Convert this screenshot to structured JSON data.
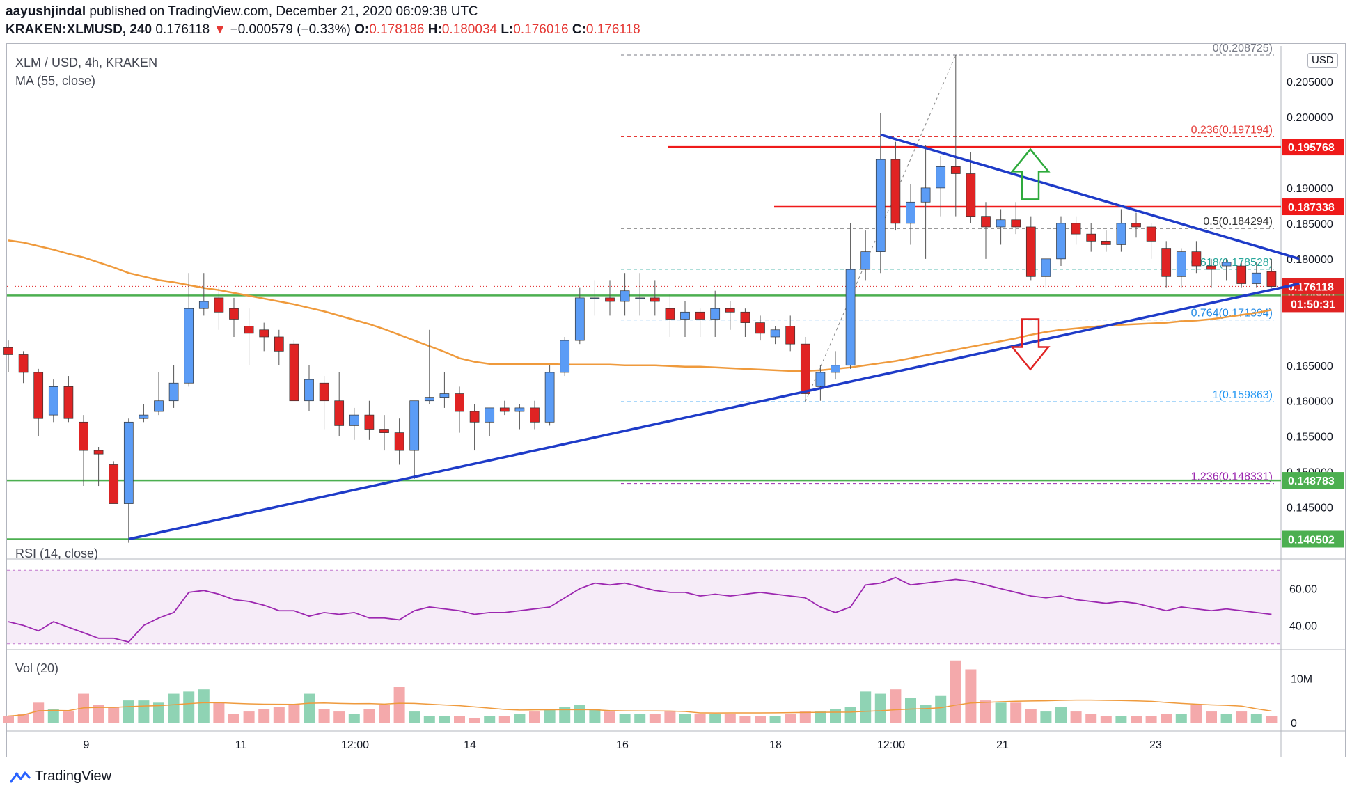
{
  "header": {
    "author": "aayushjindal",
    "published_text": "published on TradingView.com, December 21, 2020 06:09:38 UTC",
    "symbol": "KRAKEN:XLMUSD, 240",
    "last": "0.176118",
    "arrow": "▼",
    "change": "−0.000579 (−0.33%)",
    "o_label": "O:",
    "o": "0.178186",
    "h_label": "H:",
    "h": "0.180034",
    "l_label": "L:",
    "l": "0.176016",
    "c_label": "C:",
    "c": "0.176118"
  },
  "legend": {
    "main_title": "XLM / USD, 4h, KRAKEN",
    "ma_label": "MA (55, close)",
    "rsi_label": "RSI (14, close)",
    "vol_label": "Vol (20)"
  },
  "currency_button": "USD",
  "footer": {
    "brand": "TradingView"
  },
  "colors": {
    "bull": "#5b9cf6",
    "bear": "#e02323",
    "ma": "#ef9a3c",
    "trend": "#1e3bc8",
    "support": "#4caf50",
    "resistance": "#ef1a1a",
    "rsi": "#9c27b0"
  },
  "chart_data": {
    "type": "candlestick",
    "title": "XLM / USD, 4h, KRAKEN",
    "x_tick_labels": [
      "9",
      "11",
      "12:00",
      "14",
      "16",
      "18",
      "12:00",
      "21",
      "23"
    ],
    "y_tick_labels": [
      "0.205000",
      "0.200000",
      "0.190000",
      "0.185000",
      "0.180000",
      "0.165000",
      "0.160000",
      "0.155000",
      "0.150000",
      "0.145000"
    ],
    "ylim": [
      0.138,
      0.21
    ],
    "candles": [
      [
        0.1675,
        0.1685,
        0.164,
        0.1665
      ],
      [
        0.1665,
        0.167,
        0.1625,
        0.164
      ],
      [
        0.164,
        0.1645,
        0.155,
        0.1575
      ],
      [
        0.158,
        0.163,
        0.157,
        0.162
      ],
      [
        0.162,
        0.1635,
        0.157,
        0.1575
      ],
      [
        0.157,
        0.158,
        0.148,
        0.153
      ],
      [
        0.153,
        0.1535,
        0.148,
        0.1525
      ],
      [
        0.151,
        0.1515,
        0.146,
        0.1455
      ],
      [
        0.1455,
        0.1575,
        0.14,
        0.157
      ],
      [
        0.1575,
        0.1595,
        0.157,
        0.158
      ],
      [
        0.1585,
        0.164,
        0.158,
        0.16
      ],
      [
        0.16,
        0.165,
        0.159,
        0.1625
      ],
      [
        0.1625,
        0.178,
        0.162,
        0.173
      ],
      [
        0.173,
        0.178,
        0.172,
        0.174
      ],
      [
        0.1745,
        0.176,
        0.17,
        0.1725
      ],
      [
        0.173,
        0.1745,
        0.169,
        0.1715
      ],
      [
        0.1705,
        0.173,
        0.165,
        0.1695
      ],
      [
        0.17,
        0.171,
        0.167,
        0.169
      ],
      [
        0.169,
        0.17,
        0.165,
        0.167
      ],
      [
        0.168,
        0.1685,
        0.16,
        0.16
      ],
      [
        0.16,
        0.165,
        0.1585,
        0.163
      ],
      [
        0.1625,
        0.1635,
        0.156,
        0.16
      ],
      [
        0.16,
        0.164,
        0.155,
        0.1565
      ],
      [
        0.1565,
        0.159,
        0.1545,
        0.158
      ],
      [
        0.158,
        0.16,
        0.1545,
        0.156
      ],
      [
        0.156,
        0.158,
        0.153,
        0.1555
      ],
      [
        0.1555,
        0.1575,
        0.151,
        0.153
      ],
      [
        0.153,
        0.1595,
        0.149,
        0.16
      ],
      [
        0.16,
        0.17,
        0.1595,
        0.1605
      ],
      [
        0.1605,
        0.164,
        0.159,
        0.161
      ],
      [
        0.161,
        0.162,
        0.1555,
        0.1585
      ],
      [
        0.1585,
        0.1595,
        0.153,
        0.157
      ],
      [
        0.157,
        0.159,
        0.155,
        0.159
      ],
      [
        0.159,
        0.16,
        0.158,
        0.1585
      ],
      [
        0.1585,
        0.1595,
        0.156,
        0.159
      ],
      [
        0.159,
        0.16,
        0.156,
        0.157
      ],
      [
        0.157,
        0.165,
        0.1565,
        0.164
      ],
      [
        0.164,
        0.169,
        0.1635,
        0.1685
      ],
      [
        0.1685,
        0.176,
        0.168,
        0.1745
      ],
      [
        0.1745,
        0.177,
        0.172,
        0.1745
      ],
      [
        0.1745,
        0.177,
        0.172,
        0.174
      ],
      [
        0.174,
        0.178,
        0.172,
        0.1755
      ],
      [
        0.1745,
        0.178,
        0.172,
        0.1745
      ],
      [
        0.1745,
        0.177,
        0.172,
        0.174
      ],
      [
        0.173,
        0.175,
        0.169,
        0.1715
      ],
      [
        0.1715,
        0.174,
        0.169,
        0.1725
      ],
      [
        0.1725,
        0.173,
        0.169,
        0.1715
      ],
      [
        0.1715,
        0.1755,
        0.169,
        0.173
      ],
      [
        0.173,
        0.174,
        0.17,
        0.1725
      ],
      [
        0.1725,
        0.173,
        0.169,
        0.171
      ],
      [
        0.171,
        0.172,
        0.1685,
        0.1695
      ],
      [
        0.169,
        0.1705,
        0.168,
        0.17
      ],
      [
        0.1705,
        0.172,
        0.167,
        0.168
      ],
      [
        0.168,
        0.169,
        0.16,
        0.161
      ],
      [
        0.162,
        0.165,
        0.16,
        0.164
      ],
      [
        0.164,
        0.167,
        0.163,
        0.165
      ],
      [
        0.165,
        0.185,
        0.1645,
        0.1785
      ],
      [
        0.1785,
        0.184,
        0.177,
        0.181
      ],
      [
        0.181,
        0.2005,
        0.178,
        0.194
      ],
      [
        0.194,
        0.1965,
        0.184,
        0.185
      ],
      [
        0.185,
        0.1905,
        0.182,
        0.188
      ],
      [
        0.188,
        0.196,
        0.18,
        0.19
      ],
      [
        0.19,
        0.1945,
        0.186,
        0.193
      ],
      [
        0.193,
        0.2087,
        0.186,
        0.192
      ],
      [
        0.192,
        0.195,
        0.185,
        0.186
      ],
      [
        0.186,
        0.188,
        0.18,
        0.1845
      ],
      [
        0.1845,
        0.187,
        0.182,
        0.1855
      ],
      [
        0.1855,
        0.188,
        0.1835,
        0.1845
      ],
      [
        0.1845,
        0.186,
        0.177,
        0.1775
      ],
      [
        0.1775,
        0.18,
        0.176,
        0.18
      ],
      [
        0.18,
        0.186,
        0.179,
        0.185
      ],
      [
        0.185,
        0.186,
        0.182,
        0.1835
      ],
      [
        0.1835,
        0.185,
        0.181,
        0.1825
      ],
      [
        0.1825,
        0.184,
        0.181,
        0.182
      ],
      [
        0.182,
        0.187,
        0.181,
        0.185
      ],
      [
        0.185,
        0.1865,
        0.183,
        0.1845
      ],
      [
        0.1845,
        0.185,
        0.18,
        0.1825
      ],
      [
        0.1815,
        0.1825,
        0.176,
        0.1775
      ],
      [
        0.1775,
        0.1815,
        0.176,
        0.181
      ],
      [
        0.181,
        0.1825,
        0.178,
        0.179
      ],
      [
        0.179,
        0.18,
        0.176,
        0.1785
      ],
      [
        0.179,
        0.18,
        0.177,
        0.1795
      ],
      [
        0.179,
        0.1795,
        0.176,
        0.1765
      ],
      [
        0.1765,
        0.1795,
        0.176,
        0.178
      ],
      [
        0.1782,
        0.18,
        0.176,
        0.1761
      ]
    ],
    "ma55": [
      0.1826,
      0.1823,
      0.1818,
      0.1813,
      0.1807,
      0.1802,
      0.1795,
      0.1788,
      0.178,
      0.1775,
      0.177,
      0.1767,
      0.1763,
      0.1759,
      0.1756,
      0.1752,
      0.1748,
      0.1744,
      0.174,
      0.1736,
      0.1731,
      0.1726,
      0.172,
      0.1714,
      0.1708,
      0.1701,
      0.1693,
      0.1685,
      0.1677,
      0.1669,
      0.166,
      0.1655,
      0.1652,
      0.1652,
      0.1652,
      0.1652,
      0.1652,
      0.1651,
      0.1651,
      0.1651,
      0.1651,
      0.165,
      0.165,
      0.165,
      0.1649,
      0.1648,
      0.1648,
      0.1647,
      0.1646,
      0.1645,
      0.1644,
      0.1643,
      0.1642,
      0.1642,
      0.1643,
      0.1645,
      0.1647,
      0.165,
      0.1653,
      0.1656,
      0.166,
      0.1664,
      0.1668,
      0.1672,
      0.1676,
      0.168,
      0.1684,
      0.1688,
      0.1693,
      0.1697,
      0.17,
      0.1702,
      0.1704,
      0.1706,
      0.1707,
      0.1708,
      0.1709,
      0.171,
      0.1712,
      0.1713,
      0.1715,
      0.1718,
      0.1721,
      0.1724,
      0.1728
    ],
    "lines": [
      {
        "label": "0.195768",
        "price": 0.195768,
        "kind": "resistance"
      },
      {
        "label": "0.187338",
        "price": 0.187338,
        "kind": "resistance"
      },
      {
        "label": "0.174849",
        "price": 0.174849,
        "kind": "support"
      },
      {
        "label": "0.148783",
        "price": 0.148783,
        "kind": "support"
      },
      {
        "label": "0.140502",
        "price": 0.140502,
        "kind": "support"
      }
    ],
    "fib_levels": [
      {
        "label": "0(0.208725)",
        "price": 0.208725,
        "color": "#787b86"
      },
      {
        "label": "0.236(0.197194)",
        "price": 0.197194,
        "color": "#e53935"
      },
      {
        "label": "0.5(0.184294)",
        "price": 0.184294,
        "color": "#333333"
      },
      {
        "label": "0.618(0.178528)",
        "price": 0.178528,
        "color": "#26a69a"
      },
      {
        "label": "0.764(0.171394)",
        "price": 0.171394,
        "color": "#1e88e5"
      },
      {
        "label": "1(0.159863)",
        "price": 0.159863,
        "color": "#2196f3"
      },
      {
        "label": "1.236(0.148331)",
        "price": 0.148331,
        "color": "#9c27b0"
      }
    ],
    "price_tag": {
      "label": "0.176118",
      "price": 0.176118
    },
    "countdown": "01:50:31",
    "trendlines": [
      {
        "from": [
          8,
          0.1405
        ],
        "to": [
          84,
          0.1765
        ]
      },
      {
        "from": [
          58,
          0.1975
        ],
        "to": [
          84,
          0.18
        ]
      }
    ],
    "rsi": {
      "y_tick_labels": [
        "60.00",
        "40.00"
      ],
      "ylim": [
        28,
        75
      ],
      "upper": 70,
      "lower": 30,
      "values": [
        42,
        40,
        37,
        42,
        39,
        36,
        33,
        33,
        31,
        40,
        44,
        47,
        58,
        59,
        57,
        54,
        53,
        51,
        48,
        48,
        45,
        47,
        46,
        47,
        44,
        44,
        43,
        48,
        50,
        49,
        48,
        46,
        47,
        47,
        48,
        49,
        50,
        55,
        60,
        63,
        62,
        63,
        61,
        59,
        58,
        58,
        56,
        57,
        56,
        57,
        58,
        57,
        56,
        55,
        50,
        47,
        50,
        62,
        63,
        66,
        62,
        63,
        64,
        65,
        64,
        62,
        60,
        58,
        56,
        55,
        56,
        54,
        53,
        52,
        53,
        52,
        50,
        48,
        50,
        49,
        48,
        49,
        48,
        47,
        46
      ]
    },
    "volume": {
      "y_tick_labels": [
        "10M",
        "0"
      ],
      "ylim_m": [
        0,
        16
      ],
      "values_m": [
        1.5,
        2,
        4.5,
        3,
        2.5,
        6.5,
        4,
        3.5,
        5,
        5,
        4.5,
        6.5,
        7,
        7.5,
        4.5,
        2,
        2.5,
        3,
        3.5,
        4,
        6.5,
        3,
        2.5,
        2,
        3,
        4,
        8,
        2.5,
        1.5,
        1.5,
        1.5,
        1,
        1.5,
        1.5,
        2,
        2.5,
        3,
        3.5,
        4,
        3,
        2.5,
        2,
        2,
        2,
        2.5,
        2,
        2,
        2,
        2,
        1.5,
        1.5,
        1.5,
        2,
        2.5,
        2.5,
        3,
        3.5,
        7,
        6.5,
        7.5,
        5.5,
        4,
        6,
        14,
        12,
        5,
        4.5,
        4.5,
        3,
        2.5,
        3.5,
        2.5,
        2,
        1.5,
        1.5,
        1.5,
        1.5,
        2,
        2,
        4,
        2.5,
        2,
        2.5,
        2,
        1.5
      ]
    }
  }
}
